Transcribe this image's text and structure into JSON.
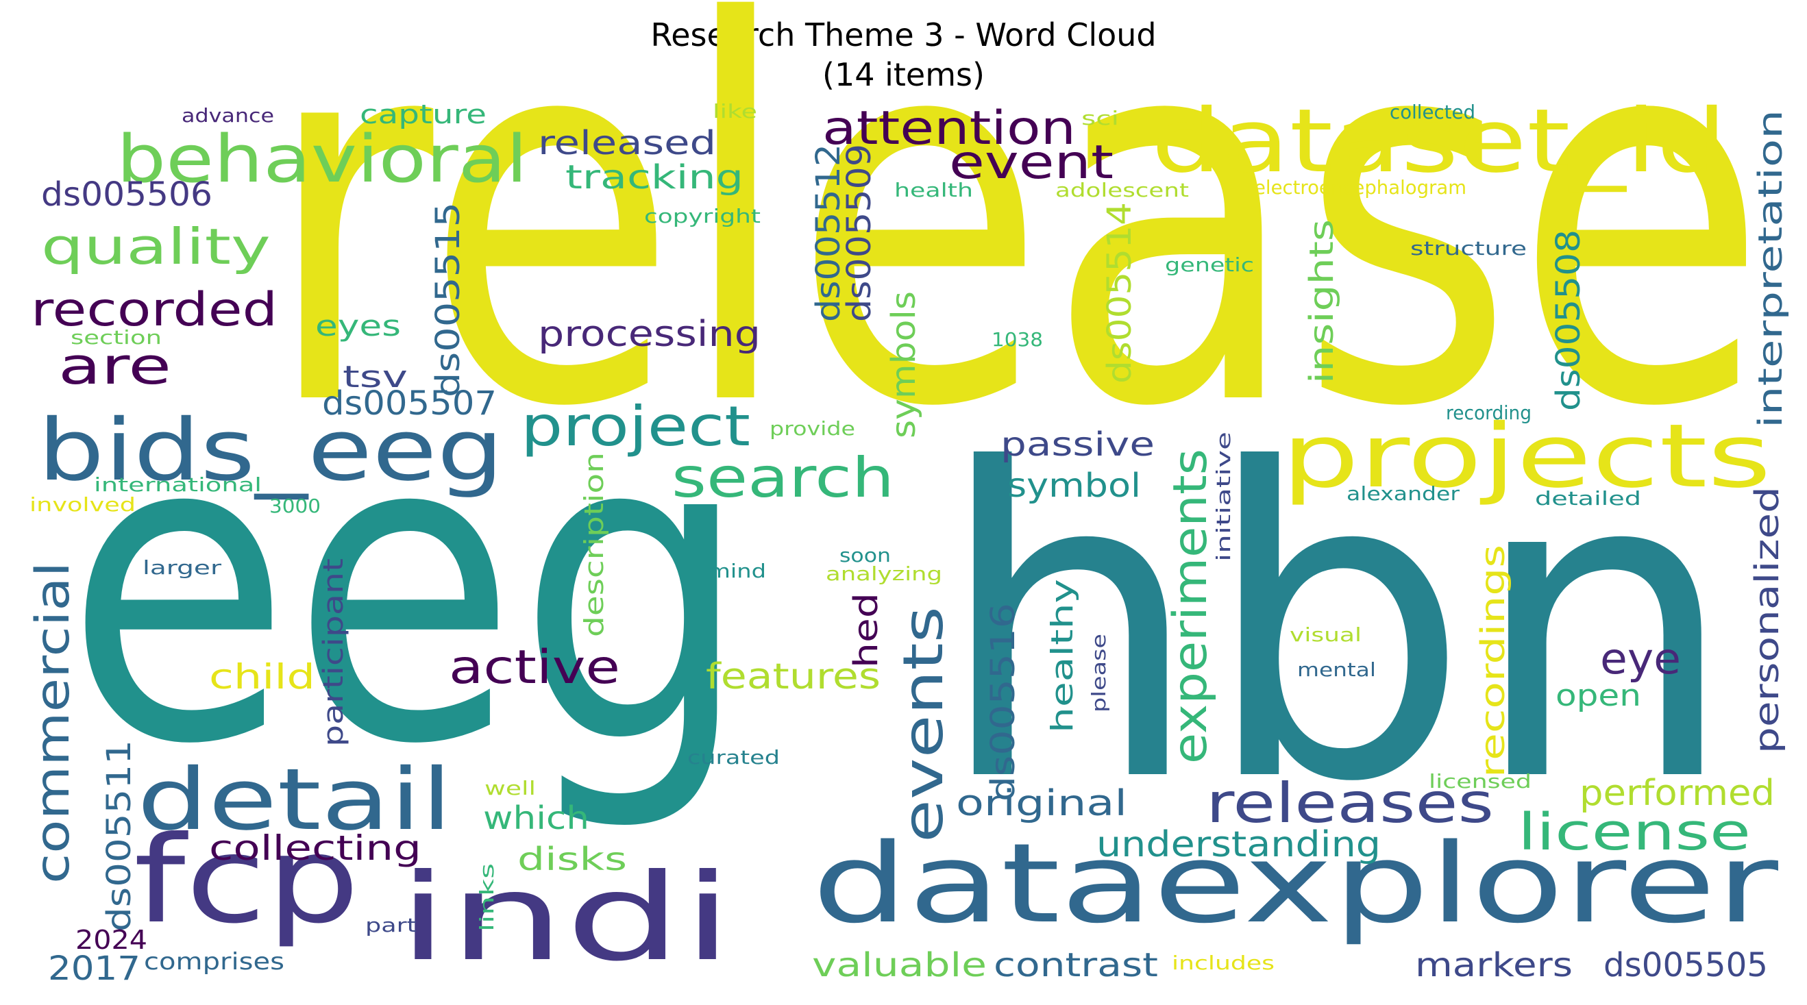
{
  "title": {
    "line1": "Research Theme 3 - Word Cloud",
    "line2": "(14 items)"
  },
  "palette": {
    "yellow": "#e6e419",
    "lime": "#b0dd2f",
    "green": "#6ece58",
    "seagreen": "#35b779",
    "teal": "#21918c",
    "tealblue": "#26828e",
    "steel": "#3e4989",
    "blue": "#31688e",
    "indigo": "#443983",
    "purple": "#482878",
    "dark": "#440154"
  },
  "words": [
    {
      "text": "release",
      "color": "yellow"
    },
    {
      "text": "eeg",
      "color": "teal"
    },
    {
      "text": "hbn",
      "color": "tealblue"
    },
    {
      "text": "dataset_id",
      "color": "yellow"
    },
    {
      "text": "projects",
      "color": "yellow"
    },
    {
      "text": "bids_eeg",
      "color": "blue"
    },
    {
      "text": "dataexplorer",
      "color": "blue"
    },
    {
      "text": "fcp",
      "color": "indigo"
    },
    {
      "text": "indi",
      "color": "indigo"
    },
    {
      "text": "detail",
      "color": "blue"
    },
    {
      "text": "behavioral",
      "color": "green"
    },
    {
      "text": "quality",
      "color": "green"
    },
    {
      "text": "recorded",
      "color": "dark"
    },
    {
      "text": "are",
      "color": "dark"
    },
    {
      "text": "ds005506",
      "color": "indigo"
    },
    {
      "text": "released",
      "color": "steel"
    },
    {
      "text": "capture",
      "color": "seagreen"
    },
    {
      "text": "tracking",
      "color": "seagreen"
    },
    {
      "text": "attention",
      "color": "dark"
    },
    {
      "text": "event",
      "color": "dark"
    },
    {
      "text": "ds005512",
      "color": "blue"
    },
    {
      "text": "ds005509",
      "color": "steel"
    },
    {
      "text": "ds005515",
      "color": "blue"
    },
    {
      "text": "eyes",
      "color": "seagreen"
    },
    {
      "text": "tsv",
      "color": "steel"
    },
    {
      "text": "ds005507",
      "color": "blue"
    },
    {
      "text": "processing",
      "color": "purple"
    },
    {
      "text": "project",
      "color": "teal"
    },
    {
      "text": "search",
      "color": "seagreen"
    },
    {
      "text": "symbols",
      "color": "green"
    },
    {
      "text": "ds005514",
      "color": "lime"
    },
    {
      "text": "insights",
      "color": "green"
    },
    {
      "text": "ds005508",
      "color": "teal"
    },
    {
      "text": "interpretation",
      "color": "blue"
    },
    {
      "text": "passive",
      "color": "steel"
    },
    {
      "text": "symbol",
      "color": "teal"
    },
    {
      "text": "experiments",
      "color": "seagreen"
    },
    {
      "text": "events",
      "color": "blue"
    },
    {
      "text": "commercial",
      "color": "blue"
    },
    {
      "text": "child",
      "color": "yellow"
    },
    {
      "text": "active",
      "color": "dark"
    },
    {
      "text": "features",
      "color": "lime"
    },
    {
      "text": "hed",
      "color": "dark"
    },
    {
      "text": "ds005516",
      "color": "blue"
    },
    {
      "text": "healthy",
      "color": "teal"
    },
    {
      "text": "recordings",
      "color": "yellow"
    },
    {
      "text": "eye",
      "color": "purple"
    },
    {
      "text": "open",
      "color": "seagreen"
    },
    {
      "text": "personalized",
      "color": "steel"
    },
    {
      "text": "releases",
      "color": "steel"
    },
    {
      "text": "license",
      "color": "seagreen"
    },
    {
      "text": "performed",
      "color": "lime"
    },
    {
      "text": "original",
      "color": "blue"
    },
    {
      "text": "understanding",
      "color": "teal"
    },
    {
      "text": "ds005511",
      "color": "blue"
    },
    {
      "text": "collecting",
      "color": "dark"
    },
    {
      "text": "participant",
      "color": "steel"
    },
    {
      "text": "description",
      "color": "green"
    },
    {
      "text": "which",
      "color": "seagreen"
    },
    {
      "text": "disks",
      "color": "green"
    },
    {
      "text": "valuable",
      "color": "green"
    },
    {
      "text": "contrast",
      "color": "blue"
    },
    {
      "text": "markers",
      "color": "steel"
    },
    {
      "text": "ds005505",
      "color": "steel"
    },
    {
      "text": "2017",
      "color": "blue"
    },
    {
      "text": "2024",
      "color": "dark"
    },
    {
      "text": "comprises",
      "color": "blue"
    },
    {
      "text": "part",
      "color": "steel"
    },
    {
      "text": "links",
      "color": "seagreen"
    },
    {
      "text": "includes",
      "color": "yellow"
    },
    {
      "text": "curated",
      "color": "tealblue"
    },
    {
      "text": "well",
      "color": "lime"
    },
    {
      "text": "licensed",
      "color": "green"
    },
    {
      "text": "advance",
      "color": "purple"
    },
    {
      "text": "like",
      "color": "lime"
    },
    {
      "text": "sci",
      "color": "lime"
    },
    {
      "text": "collected",
      "color": "teal"
    },
    {
      "text": "health",
      "color": "seagreen"
    },
    {
      "text": "adolescent",
      "color": "lime"
    },
    {
      "text": "electroencephalogram",
      "color": "yellow"
    },
    {
      "text": "copyright",
      "color": "seagreen"
    },
    {
      "text": "structure",
      "color": "blue"
    },
    {
      "text": "genetic",
      "color": "seagreen"
    },
    {
      "text": "section",
      "color": "green"
    },
    {
      "text": "1038",
      "color": "seagreen"
    },
    {
      "text": "provide",
      "color": "green"
    },
    {
      "text": "recording",
      "color": "teal"
    },
    {
      "text": "international",
      "color": "seagreen"
    },
    {
      "text": "involved",
      "color": "yellow"
    },
    {
      "text": "3000",
      "color": "seagreen"
    },
    {
      "text": "alexander",
      "color": "teal"
    },
    {
      "text": "detailed",
      "color": "teal"
    },
    {
      "text": "initiative",
      "color": "steel"
    },
    {
      "text": "larger",
      "color": "blue"
    },
    {
      "text": "soon",
      "color": "teal"
    },
    {
      "text": "mind",
      "color": "teal"
    },
    {
      "text": "analyzing",
      "color": "lime"
    },
    {
      "text": "please",
      "color": "steel"
    },
    {
      "text": "visual",
      "color": "lime"
    },
    {
      "text": "mental",
      "color": "blue"
    }
  ]
}
